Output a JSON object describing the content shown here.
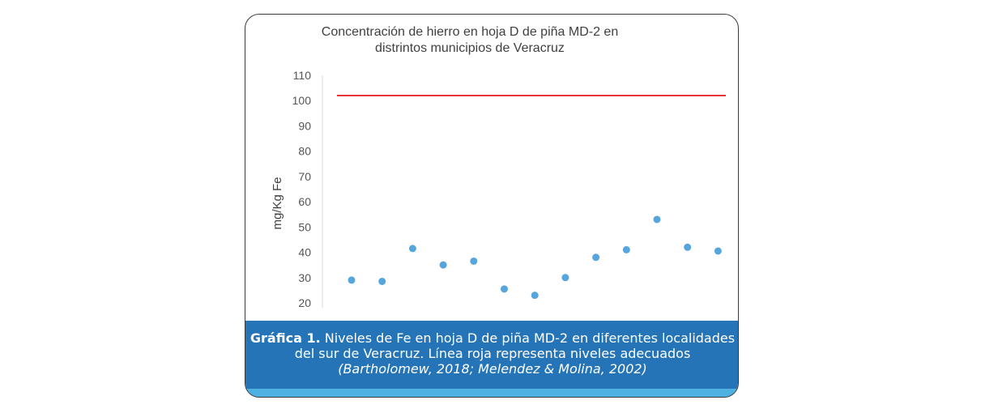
{
  "chart_data": {
    "type": "scatter",
    "title_lines": [
      "Concentración de hierro en hoja D de piña MD-2 en",
      "distrintos municipios de Veracruz"
    ],
    "xlabel": "",
    "ylabel": "mg/Kg Fe",
    "ylim": [
      20,
      110
    ],
    "yticks": [
      "110",
      "100",
      "90",
      "80",
      "70",
      "60",
      "50",
      "40",
      "30",
      "20"
    ],
    "x": [
      1,
      2,
      3,
      4,
      5,
      6,
      7,
      8,
      9,
      10,
      11,
      12,
      13
    ],
    "values": [
      29,
      28.5,
      41.5,
      35,
      36.5,
      25.5,
      23,
      30,
      38,
      41,
      53,
      42,
      40.5
    ],
    "reference_line": {
      "value": 102,
      "color": "#e8353a"
    },
    "point_color": "#56a5dc"
  },
  "caption": {
    "bold": "Gráfica 1.",
    "text": " Niveles de Fe en hoja D de piña MD-2 en diferentes localidades del sur de Veracruz. Línea roja representa niveles adecuados ",
    "italic": "(Bartholomew, 2018; Melendez & Molina, 2002)"
  }
}
